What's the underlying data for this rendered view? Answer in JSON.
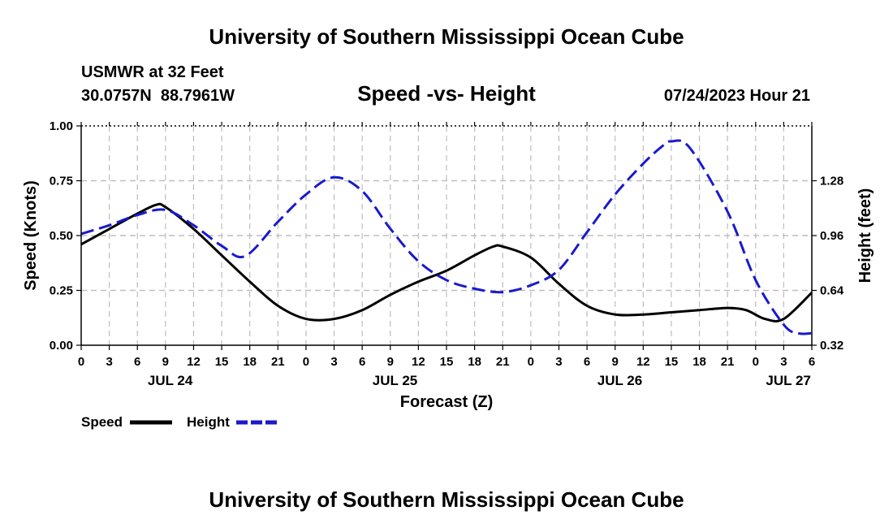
{
  "header": {
    "title": "University of Southern Mississippi Ocean Cube",
    "station": "USMWR at 32 Feet",
    "coords": "30.0757N  88.7961W",
    "subtitle": "Speed -vs- Height",
    "datetime": "07/24/2023 Hour 21"
  },
  "footer": {
    "title": "University of Southern Mississippi Ocean Cube"
  },
  "chart_data": {
    "type": "line",
    "title": "Speed -vs- Height",
    "xlabel": "Forecast (Z)",
    "ylabel": "Speed (Knots)",
    "y2label": "Height (feet)",
    "x_unit": "forecast hours from JUL 24 00Z",
    "xlim": [
      0,
      78
    ],
    "ylim": [
      0,
      1.0
    ],
    "y2lim": [
      0.32,
      1.6
    ],
    "grid": true,
    "x_ticks": [
      {
        "x": 0,
        "label": "0"
      },
      {
        "x": 3,
        "label": "3"
      },
      {
        "x": 6,
        "label": "6"
      },
      {
        "x": 9,
        "label": "9"
      },
      {
        "x": 12,
        "label": "12"
      },
      {
        "x": 15,
        "label": "15"
      },
      {
        "x": 18,
        "label": "18"
      },
      {
        "x": 21,
        "label": "21"
      },
      {
        "x": 24,
        "label": "0"
      },
      {
        "x": 27,
        "label": "3"
      },
      {
        "x": 30,
        "label": "6"
      },
      {
        "x": 33,
        "label": "9"
      },
      {
        "x": 36,
        "label": "12"
      },
      {
        "x": 39,
        "label": "15"
      },
      {
        "x": 42,
        "label": "18"
      },
      {
        "x": 45,
        "label": "21"
      },
      {
        "x": 48,
        "label": "0"
      },
      {
        "x": 51,
        "label": "3"
      },
      {
        "x": 54,
        "label": "6"
      },
      {
        "x": 57,
        "label": "9"
      },
      {
        "x": 60,
        "label": "12"
      },
      {
        "x": 63,
        "label": "15"
      },
      {
        "x": 66,
        "label": "18"
      },
      {
        "x": 69,
        "label": "21"
      },
      {
        "x": 72,
        "label": "0"
      },
      {
        "x": 75,
        "label": "3"
      },
      {
        "x": 78,
        "label": "6"
      }
    ],
    "date_labels": [
      {
        "x": 9.5,
        "label": "JUL 24"
      },
      {
        "x": 33.5,
        "label": "JUL 25"
      },
      {
        "x": 57.5,
        "label": "JUL 26"
      },
      {
        "x": 75.5,
        "label": "JUL 27"
      }
    ],
    "y_ticks": [
      {
        "value": 0.0,
        "label": "0.00"
      },
      {
        "value": 0.25,
        "label": "0.25"
      },
      {
        "value": 0.5,
        "label": "0.50"
      },
      {
        "value": 0.75,
        "label": "0.75"
      },
      {
        "value": 1.0,
        "label": "1.00"
      }
    ],
    "y2_ticks": [
      {
        "value": 0.32,
        "label": "0.32"
      },
      {
        "value": 0.64,
        "label": "0.64"
      },
      {
        "value": 0.96,
        "label": "0.96"
      },
      {
        "value": 1.28,
        "label": "1.28"
      }
    ],
    "series": [
      {
        "name": "Speed",
        "axis": "left",
        "color": "#000000",
        "style": "solid",
        "points": [
          [
            0,
            0.46
          ],
          [
            3,
            0.53
          ],
          [
            6,
            0.6
          ],
          [
            8,
            0.64
          ],
          [
            9,
            0.63
          ],
          [
            12,
            0.53
          ],
          [
            15,
            0.41
          ],
          [
            18,
            0.29
          ],
          [
            21,
            0.18
          ],
          [
            24,
            0.12
          ],
          [
            27,
            0.12
          ],
          [
            30,
            0.16
          ],
          [
            33,
            0.23
          ],
          [
            36,
            0.29
          ],
          [
            39,
            0.34
          ],
          [
            42,
            0.41
          ],
          [
            44,
            0.45
          ],
          [
            45,
            0.45
          ],
          [
            48,
            0.4
          ],
          [
            51,
            0.28
          ],
          [
            54,
            0.18
          ],
          [
            57,
            0.14
          ],
          [
            60,
            0.14
          ],
          [
            63,
            0.15
          ],
          [
            66,
            0.16
          ],
          [
            69,
            0.17
          ],
          [
            71,
            0.16
          ],
          [
            73,
            0.12
          ],
          [
            75,
            0.12
          ],
          [
            78,
            0.24
          ]
        ]
      },
      {
        "name": "Height",
        "axis": "right",
        "color": "#1a1acc",
        "style": "dashed",
        "points": [
          [
            0,
            0.97
          ],
          [
            3,
            1.02
          ],
          [
            6,
            1.08
          ],
          [
            9,
            1.11
          ],
          [
            12,
            1.02
          ],
          [
            15,
            0.9
          ],
          [
            17.5,
            0.84
          ],
          [
            21,
            1.04
          ],
          [
            24,
            1.2
          ],
          [
            27,
            1.3
          ],
          [
            30,
            1.22
          ],
          [
            33,
            1.0
          ],
          [
            36,
            0.81
          ],
          [
            39,
            0.7
          ],
          [
            42,
            0.65
          ],
          [
            45,
            0.63
          ],
          [
            48,
            0.67
          ],
          [
            51,
            0.76
          ],
          [
            54,
            0.98
          ],
          [
            57,
            1.2
          ],
          [
            60,
            1.38
          ],
          [
            62,
            1.48
          ],
          [
            63,
            1.51
          ],
          [
            65,
            1.47
          ],
          [
            69,
            1.1
          ],
          [
            72,
            0.7
          ],
          [
            75,
            0.44
          ],
          [
            76.5,
            0.39
          ],
          [
            78,
            0.39
          ]
        ]
      }
    ],
    "legend": {
      "position": "bottom-left",
      "items": [
        {
          "label": "Speed",
          "color": "#000000",
          "style": "solid"
        },
        {
          "label": "Height",
          "color": "#1a1acc",
          "style": "dashed"
        }
      ]
    }
  }
}
